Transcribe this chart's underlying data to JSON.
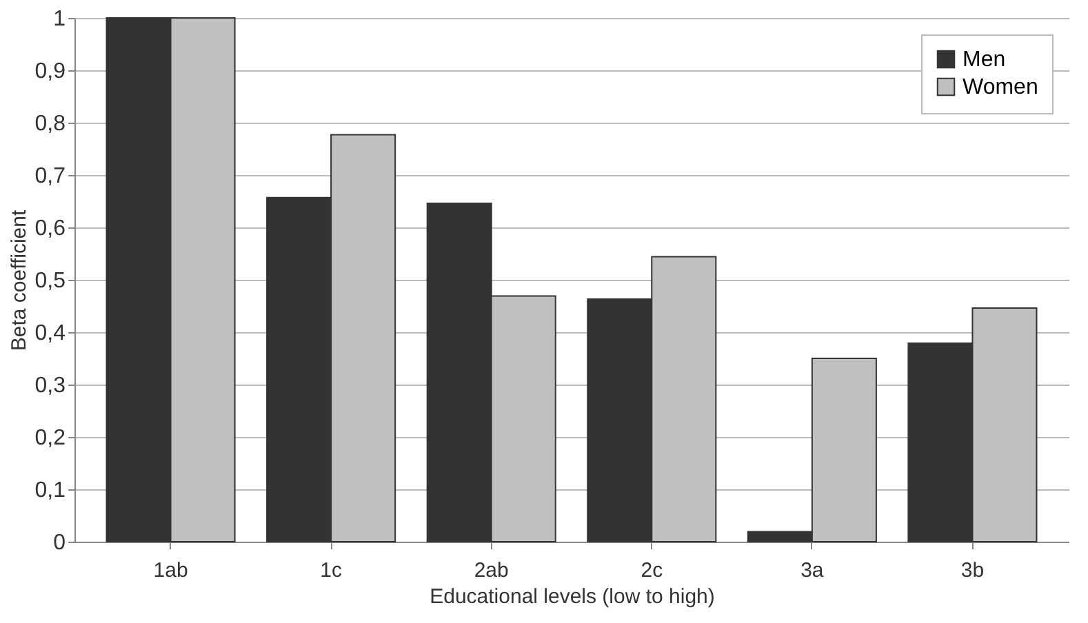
{
  "chart_data": {
    "type": "bar",
    "xlabel": "Educational levels (low to high)",
    "ylabel": "Beta coefficient",
    "categories": [
      "1ab",
      "1c",
      "2ab",
      "2c",
      "3a",
      "3b"
    ],
    "series": [
      {
        "name": "Men",
        "color": "#333333",
        "values": [
          1,
          0.657,
          0.646,
          0.463,
          0.019,
          0.379
        ]
      },
      {
        "name": "Women",
        "color": "#c0c0c0",
        "values": [
          1,
          0.777,
          0.469,
          0.544,
          0.35,
          0.446
        ]
      }
    ],
    "ylim": [
      0,
      1
    ],
    "yticks": [
      0,
      {
        "value": 0.1,
        "label": "0,1"
      },
      {
        "value": 0.2,
        "label": "0,2"
      },
      {
        "value": 0.3,
        "label": "0,3"
      },
      {
        "value": 0.4,
        "label": "0,4"
      },
      {
        "value": 0.5,
        "label": "0,5"
      },
      {
        "value": 0.6,
        "label": "0,6"
      },
      {
        "value": 0.7,
        "label": "0,7"
      },
      {
        "value": 0.8,
        "label": "0,8"
      },
      {
        "value": 0.9,
        "label": "0,9"
      },
      1
    ],
    "grid": "y",
    "legend": "top right"
  }
}
